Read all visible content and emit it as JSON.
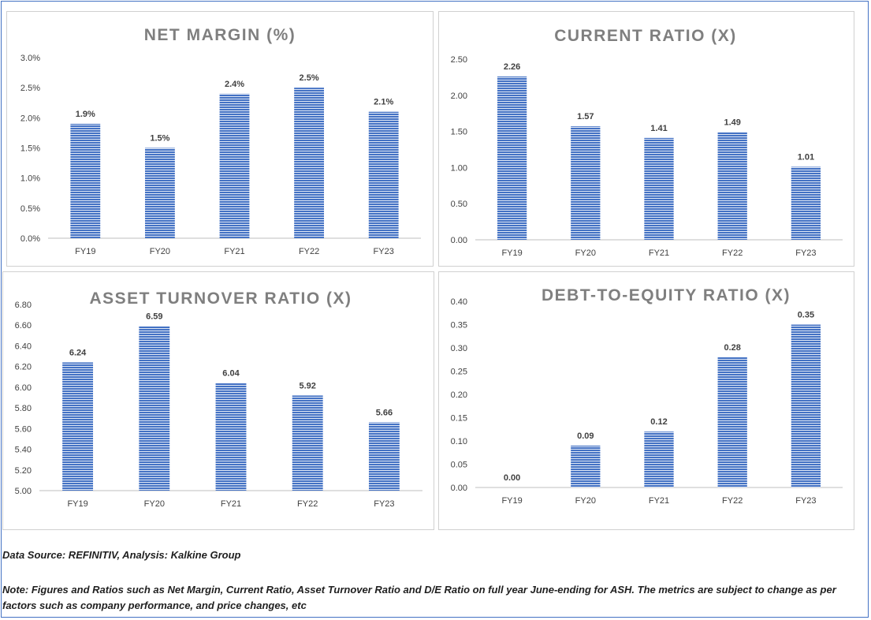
{
  "colors": {
    "bar": "#4472c4",
    "bar_stripe": "#dfe7f5",
    "frame": "#4472c4"
  },
  "chart_data": [
    {
      "type": "bar",
      "title": "NET MARGIN (%)",
      "categories": [
        "FY19",
        "FY20",
        "FY21",
        "FY22",
        "FY23"
      ],
      "values": [
        1.9,
        1.5,
        2.4,
        2.5,
        2.1
      ],
      "data_labels": [
        "1.9%",
        "1.5%",
        "2.4%",
        "2.5%",
        "2.1%"
      ],
      "yticks": [
        "0.0%",
        "0.5%",
        "1.0%",
        "1.5%",
        "2.0%",
        "2.5%",
        "3.0%"
      ],
      "ylim": [
        0,
        3.0
      ],
      "grid": false
    },
    {
      "type": "bar",
      "title": "CURRENT RATIO (X)",
      "categories": [
        "FY19",
        "FY20",
        "FY21",
        "FY22",
        "FY23"
      ],
      "values": [
        2.26,
        1.57,
        1.41,
        1.49,
        1.01
      ],
      "data_labels": [
        "2.26",
        "1.57",
        "1.41",
        "1.49",
        "1.01"
      ],
      "yticks": [
        "0.00",
        "0.50",
        "1.00",
        "1.50",
        "2.00",
        "2.50"
      ],
      "ylim": [
        0,
        2.5
      ],
      "grid": false
    },
    {
      "type": "bar",
      "title": "ASSET TURNOVER RATIO (X)",
      "categories": [
        "FY19",
        "FY20",
        "FY21",
        "FY22",
        "FY23"
      ],
      "values": [
        6.24,
        6.59,
        6.04,
        5.92,
        5.66
      ],
      "data_labels": [
        "6.24",
        "6.59",
        "6.04",
        "5.92",
        "5.66"
      ],
      "yticks": [
        "5.00",
        "5.20",
        "5.40",
        "5.60",
        "5.80",
        "6.00",
        "6.20",
        "6.40",
        "6.60",
        "6.80"
      ],
      "ylim": [
        5.0,
        6.8
      ],
      "grid": false
    },
    {
      "type": "bar",
      "title": "DEBT-TO-EQUITY RATIO (X)",
      "categories": [
        "FY19",
        "FY20",
        "FY21",
        "FY22",
        "FY23"
      ],
      "values": [
        0.0,
        0.09,
        0.12,
        0.28,
        0.35
      ],
      "data_labels": [
        "0.00",
        "0.09",
        "0.12",
        "0.28",
        "0.35"
      ],
      "yticks": [
        "0.00",
        "0.05",
        "0.10",
        "0.15",
        "0.20",
        "0.25",
        "0.30",
        "0.35",
        "0.40"
      ],
      "ylim": [
        0,
        0.4
      ],
      "grid": false
    }
  ],
  "notes": {
    "source": "Data Source: REFINITIV, Analysis: Kalkine Group",
    "line1": "Note: Figures and Ratios such as Net Margin, Current Ratio, Asset Turnover Ratio and D/E Ratio on full year June-ending for ASH. The metrics are subject to change as per",
    "line2": "factors such as company performance, and price changes, etc"
  }
}
